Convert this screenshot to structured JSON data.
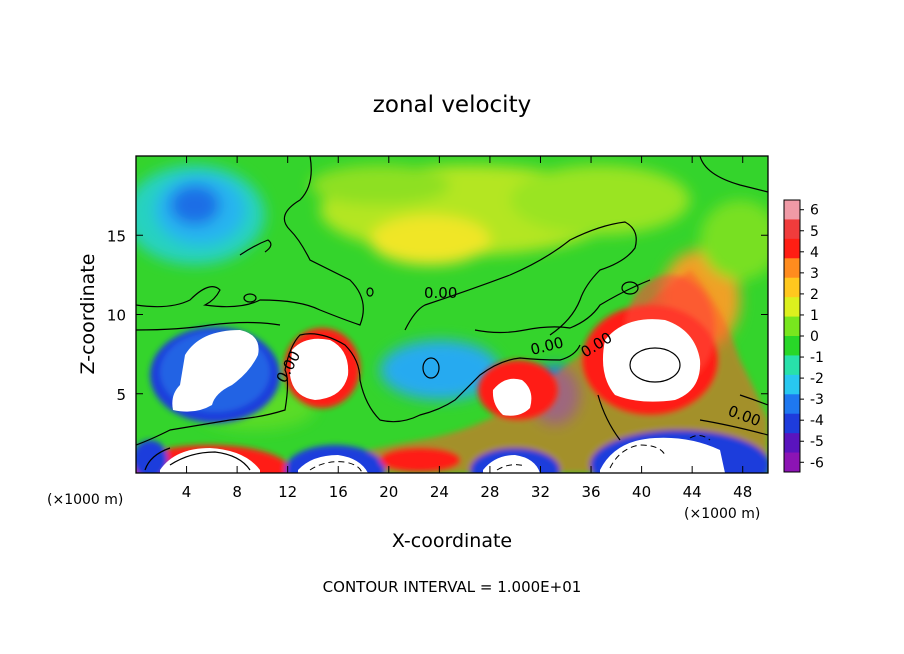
{
  "chart_data": {
    "type": "heatmap",
    "title": "zonal velocity",
    "xlabel": "X-coordinate",
    "ylabel": "Z-coordinate",
    "x_unit_left": "(×1000 m)",
    "x_unit_right": "(×1000 m)",
    "xlim": [
      0,
      50
    ],
    "ylim": [
      0,
      20
    ],
    "x_ticks": [
      4,
      8,
      12,
      16,
      20,
      24,
      28,
      32,
      36,
      40,
      44,
      48
    ],
    "y_ticks": [
      5,
      10,
      15
    ],
    "colorbar": {
      "ticks": [
        6,
        5,
        4,
        3,
        2,
        1,
        0,
        -1,
        -2,
        -3,
        -4,
        -5,
        -6
      ],
      "colors": [
        "#f09aa6",
        "#f03c3c",
        "#ff1e14",
        "#ff8c1e",
        "#ffc81e",
        "#dcf01e",
        "#78e61e",
        "#28d728",
        "#28e1aa",
        "#28c8f0",
        "#1e78f0",
        "#1e3cdc",
        "#5a14be",
        "#8c14b4"
      ]
    },
    "contour_labels": [
      "0.00",
      "0.00",
      "0.00",
      "0.00",
      "0.00",
      "0.00"
    ],
    "contour_interval_text": "CONTOUR INTERVAL = 1.000E+01"
  }
}
